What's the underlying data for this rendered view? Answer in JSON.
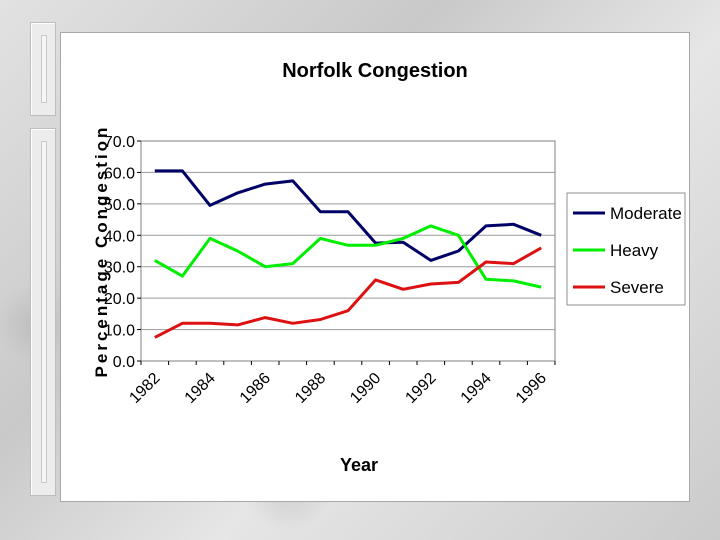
{
  "slide": {
    "background": "grey marble texture"
  },
  "chart_data": {
    "type": "line",
    "title": "Norfolk Congestion",
    "xlabel": "Year",
    "ylabel": "Percentage Congestion",
    "ylim": [
      0,
      70
    ],
    "yticks": [
      "0.0",
      "10.0",
      "20.0",
      "30.0",
      "40.0",
      "50.0",
      "60.0",
      "70.0"
    ],
    "xticks": [
      "1982",
      "1984",
      "1986",
      "1988",
      "1990",
      "1992",
      "1994",
      "1996"
    ],
    "x": [
      1982,
      1983,
      1984,
      1985,
      1986,
      1987,
      1988,
      1989,
      1990,
      1991,
      1992,
      1993,
      1994,
      1995,
      1996
    ],
    "grid": "horizontal",
    "legend": "right",
    "series": [
      {
        "name": "Moderate",
        "color": "#000066",
        "values": [
          60.5,
          60.5,
          49.5,
          53.5,
          56.3,
          57.3,
          47.5,
          47.5,
          37.5,
          37.8,
          32.0,
          35.0,
          43.0,
          43.5,
          40.0
        ]
      },
      {
        "name": "Heavy",
        "color": "#00ee00",
        "values": [
          32.0,
          27.0,
          39.0,
          35.0,
          30.0,
          31.0,
          39.0,
          36.8,
          36.8,
          39.0,
          43.0,
          40.0,
          26.0,
          25.5,
          23.5
        ]
      },
      {
        "name": "Severe",
        "color": "#dd1111",
        "values": [
          7.5,
          12.0,
          12.0,
          11.5,
          13.8,
          12.0,
          13.2,
          16.0,
          25.8,
          22.8,
          24.5,
          25.0,
          31.5,
          31.0,
          36.0
        ]
      }
    ]
  }
}
